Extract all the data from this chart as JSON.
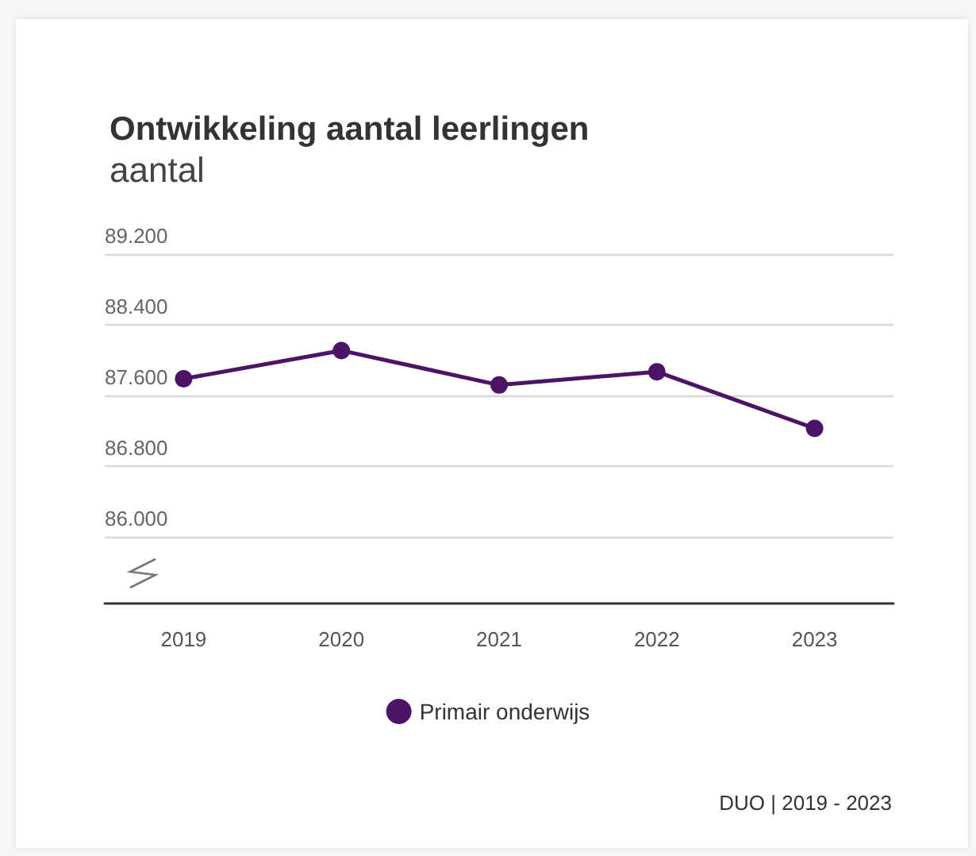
{
  "chart_data": {
    "type": "line",
    "title": "Ontwikkeling aantal leerlingen",
    "subtitle": "aantal",
    "categories": [
      "2019",
      "2020",
      "2021",
      "2022",
      "2023"
    ],
    "series": [
      {
        "name": "Primair onderwijs",
        "color": "#4b1466",
        "values": [
          87790,
          88110,
          87720,
          87870,
          87230
        ]
      }
    ],
    "ylim": [
      85250,
      89200
    ],
    "yticks": [
      {
        "value": 86000,
        "label": "86.000"
      },
      {
        "value": 86800,
        "label": "86.800"
      },
      {
        "value": 87600,
        "label": "87.600"
      },
      {
        "value": 88400,
        "label": "88.400"
      },
      {
        "value": 89200,
        "label": "89.200"
      }
    ],
    "grid": "y",
    "legend": "bottom",
    "marker": "circle",
    "line_style": "solid",
    "annotations": [
      "DUO | 2019 - 2023"
    ]
  }
}
